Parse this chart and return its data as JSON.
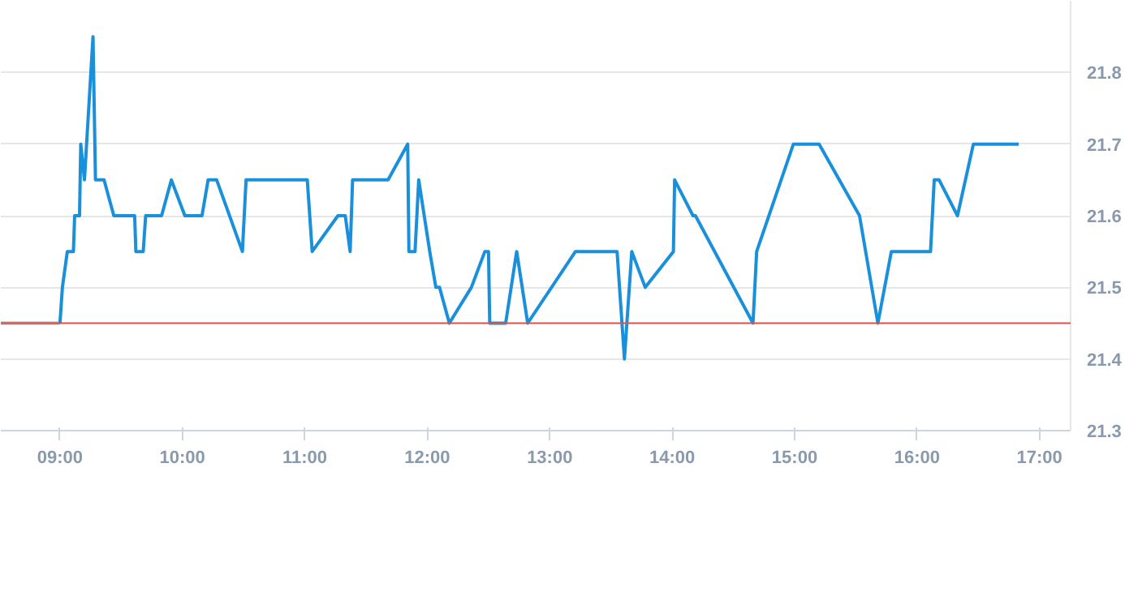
{
  "chart_data": {
    "type": "line",
    "xlim": [
      8.517,
      17.254
    ],
    "ylim": [
      21.3,
      21.9
    ],
    "xticks": [
      {
        "value": 9,
        "label": "09:00"
      },
      {
        "value": 10,
        "label": "10:00"
      },
      {
        "value": 11,
        "label": "11:00"
      },
      {
        "value": 12,
        "label": "12:00"
      },
      {
        "value": 13,
        "label": "13:00"
      },
      {
        "value": 14,
        "label": "14:00"
      },
      {
        "value": 15,
        "label": "15:00"
      },
      {
        "value": 16,
        "label": "16:00"
      },
      {
        "value": 17,
        "label": "17:00"
      }
    ],
    "yticks": [
      21.3,
      21.4,
      21.5,
      21.6,
      21.7,
      21.8
    ],
    "grid": "y",
    "marker": "none",
    "line_style": "solid",
    "ref_lines": [
      {
        "axis": "y",
        "value": 21.45,
        "label": null,
        "color": "#d9534f"
      }
    ],
    "series": [
      {
        "color": "#aaaaaa",
        "x": [
          8.517,
          9.0
        ],
        "values": [
          21.45,
          21.45
        ]
      },
      {
        "color": "#1a90db",
        "x": [
          9.0,
          9.02,
          9.06,
          9.11,
          9.12,
          9.16,
          9.17,
          9.2,
          9.27,
          9.29,
          9.36,
          9.44,
          9.61,
          9.62,
          9.68,
          9.7,
          9.83,
          9.91,
          10.02,
          10.16,
          10.21,
          10.28,
          10.49,
          10.52,
          11.02,
          11.06,
          11.27,
          11.33,
          11.37,
          11.39,
          11.68,
          11.84,
          11.85,
          11.9,
          11.93,
          12.02,
          12.07,
          12.1,
          12.18,
          12.36,
          12.47,
          12.5,
          12.51,
          12.64,
          12.73,
          12.82,
          13.21,
          13.55,
          13.61,
          13.67,
          13.78,
          14.01,
          14.02,
          14.17,
          14.19,
          14.66,
          14.69,
          14.99,
          15.2,
          15.53,
          15.68,
          15.79,
          16.11,
          16.14,
          16.18,
          16.33,
          16.46,
          16.83
        ],
        "values": [
          21.45,
          21.5,
          21.55,
          21.55,
          21.6,
          21.6,
          21.7,
          21.65,
          21.85,
          21.65,
          21.65,
          21.6,
          21.6,
          21.55,
          21.55,
          21.6,
          21.6,
          21.65,
          21.6,
          21.6,
          21.65,
          21.65,
          21.55,
          21.65,
          21.65,
          21.55,
          21.6,
          21.6,
          21.55,
          21.65,
          21.65,
          21.7,
          21.55,
          21.55,
          21.65,
          21.55,
          21.5,
          21.5,
          21.45,
          21.5,
          21.55,
          21.55,
          21.45,
          21.45,
          21.55,
          21.45,
          21.55,
          21.55,
          21.4,
          21.55,
          21.5,
          21.55,
          21.65,
          21.6,
          21.6,
          21.45,
          21.55,
          21.7,
          21.7,
          21.6,
          21.45,
          21.55,
          21.55,
          21.65,
          21.65,
          21.6,
          21.7,
          21.7
        ]
      }
    ]
  }
}
